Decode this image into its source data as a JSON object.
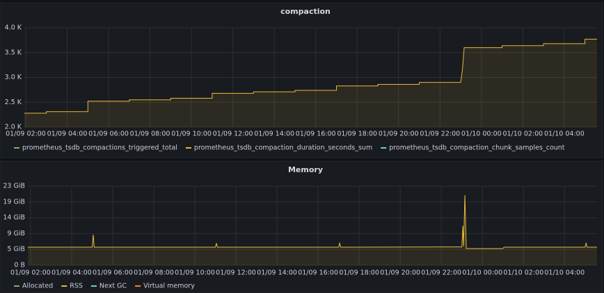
{
  "chart_data": [
    {
      "type": "line",
      "title": "compaction",
      "x": [
        "01/09 01:56",
        "01/09 03:00",
        "01/09 03:00",
        "01/09 05:00",
        "01/09 05:00",
        "01/09 07:00",
        "01/09 07:00",
        "01/09 09:00",
        "01/09 09:00",
        "01/09 11:00",
        "01/09 11:00",
        "01/09 13:00",
        "01/09 13:00",
        "01/09 15:00",
        "01/09 15:00",
        "01/09 17:00",
        "01/09 17:00",
        "01/09 19:00",
        "01/09 19:00",
        "01/09 21:00",
        "01/09 21:00",
        "01/09 23:00",
        "01/09 23:05",
        "01/09 23:10",
        "01/10 01:00",
        "01/10 01:00",
        "01/10 03:00",
        "01/10 03:00",
        "01/10 05:00",
        "01/10 05:00",
        "01/10 05:35"
      ],
      "series": [
        {
          "name": "prometheus_tsdb_compactions_triggered_total",
          "color": "#7eb26d",
          "values": [
            null,
            null,
            null,
            null,
            null,
            null,
            null,
            null,
            null,
            null,
            null,
            null,
            null,
            null,
            null,
            null,
            null,
            null,
            null,
            null,
            null,
            null,
            null,
            null,
            null,
            null,
            null,
            null,
            null,
            null,
            null
          ]
        },
        {
          "name": "prometheus_tsdb_compaction_duration_seconds_sum",
          "color": "#eab839",
          "values": [
            2280,
            2280,
            2310,
            2310,
            2520,
            2520,
            2550,
            2550,
            2580,
            2580,
            2680,
            2680,
            2710,
            2710,
            2740,
            2740,
            2830,
            2830,
            2860,
            2860,
            2900,
            2900,
            3150,
            3600,
            3600,
            3640,
            3640,
            3680,
            3680,
            3770,
            3770
          ]
        },
        {
          "name": "prometheus_tsdb_compaction_chunk_samples_count",
          "color": "#6ed0e0",
          "values": [
            null,
            null,
            null,
            null,
            null,
            null,
            null,
            null,
            null,
            null,
            null,
            null,
            null,
            null,
            null,
            null,
            null,
            null,
            null,
            null,
            null,
            null,
            null,
            null,
            null,
            null,
            null,
            null,
            null,
            null,
            null
          ]
        }
      ],
      "xlim": [
        "01/09 01:56",
        "01/10 05:35"
      ],
      "xticks": [
        "01/09 02:00",
        "01/09 04:00",
        "01/09 06:00",
        "01/09 08:00",
        "01/09 10:00",
        "01/09 12:00",
        "01/09 14:00",
        "01/09 16:00",
        "01/09 18:00",
        "01/09 20:00",
        "01/09 22:00",
        "01/10 00:00",
        "01/10 02:00",
        "01/10 04:00"
      ],
      "ylim": [
        2000,
        4000
      ],
      "yticks": [
        {
          "value": 2000,
          "label": "2.0 K"
        },
        {
          "value": 2500,
          "label": "2.5 K"
        },
        {
          "value": 3000,
          "label": "3.0 K"
        },
        {
          "value": 3500,
          "label": "3.5 K"
        },
        {
          "value": 4000,
          "label": "4.0 K"
        }
      ],
      "grid": true
    },
    {
      "type": "line",
      "title": "Memory",
      "x": [
        "01/09 01:52",
        "01/09 05:00",
        "01/09 05:03",
        "01/09 05:06",
        "01/09 11:00",
        "01/09 11:03",
        "01/09 11:06",
        "01/09 17:00",
        "01/09 17:03",
        "01/09 17:06",
        "01/09 23:00",
        "01/09 23:03",
        "01/09 23:05",
        "01/09 23:09",
        "01/09 23:13",
        "01/10 01:00",
        "01/10 01:03",
        "01/10 05:00",
        "01/10 05:03",
        "01/10 05:06",
        "01/10 05:35"
      ],
      "series": [
        {
          "name": "Allocated",
          "color": "#7eb26d",
          "values": [
            null,
            null,
            null,
            null,
            null,
            null,
            null,
            null,
            null,
            null,
            null,
            null,
            null,
            null,
            null,
            null,
            null,
            null,
            null,
            null,
            null
          ]
        },
        {
          "name": "RSS",
          "color": "#eab839",
          "values": [
            5.3,
            5.3,
            9.0,
            5.3,
            5.3,
            6.5,
            5.3,
            5.3,
            6.5,
            5.3,
            5.4,
            11.6,
            5.6,
            20.6,
            4.9,
            4.9,
            5.3,
            5.3,
            6.6,
            5.3,
            5.3
          ]
        },
        {
          "name": "Next GC",
          "color": "#6ed0e0",
          "values": [
            null,
            null,
            null,
            null,
            null,
            null,
            null,
            null,
            null,
            null,
            null,
            null,
            null,
            null,
            null,
            null,
            null,
            null,
            null,
            null,
            null
          ]
        },
        {
          "name": "Virtual memory",
          "color": "#ef843c",
          "values": [
            null,
            null,
            null,
            null,
            null,
            null,
            null,
            null,
            null,
            null,
            null,
            null,
            null,
            null,
            null,
            null,
            null,
            null,
            null,
            null,
            null
          ]
        }
      ],
      "xlim": [
        "01/09 01:52",
        "01/10 05:35"
      ],
      "xticks": [
        "01/09 02:00",
        "01/09 04:00",
        "01/09 06:00",
        "01/09 08:00",
        "01/09 10:00",
        "01/09 12:00",
        "01/09 14:00",
        "01/09 16:00",
        "01/09 18:00",
        "01/09 20:00",
        "01/09 22:00",
        "01/10 00:00",
        "01/10 02:00",
        "01/10 04:00"
      ],
      "ylim": [
        0,
        23.28
      ],
      "yticks": [
        {
          "value": 0,
          "label": "0 B"
        },
        {
          "value": 4.66,
          "label": "5 GiB"
        },
        {
          "value": 9.31,
          "label": "9 GiB"
        },
        {
          "value": 13.97,
          "label": "14 GiB"
        },
        {
          "value": 18.63,
          "label": "19 GiB"
        },
        {
          "value": 23.28,
          "label": "23 GiB"
        }
      ],
      "grid": true
    }
  ]
}
